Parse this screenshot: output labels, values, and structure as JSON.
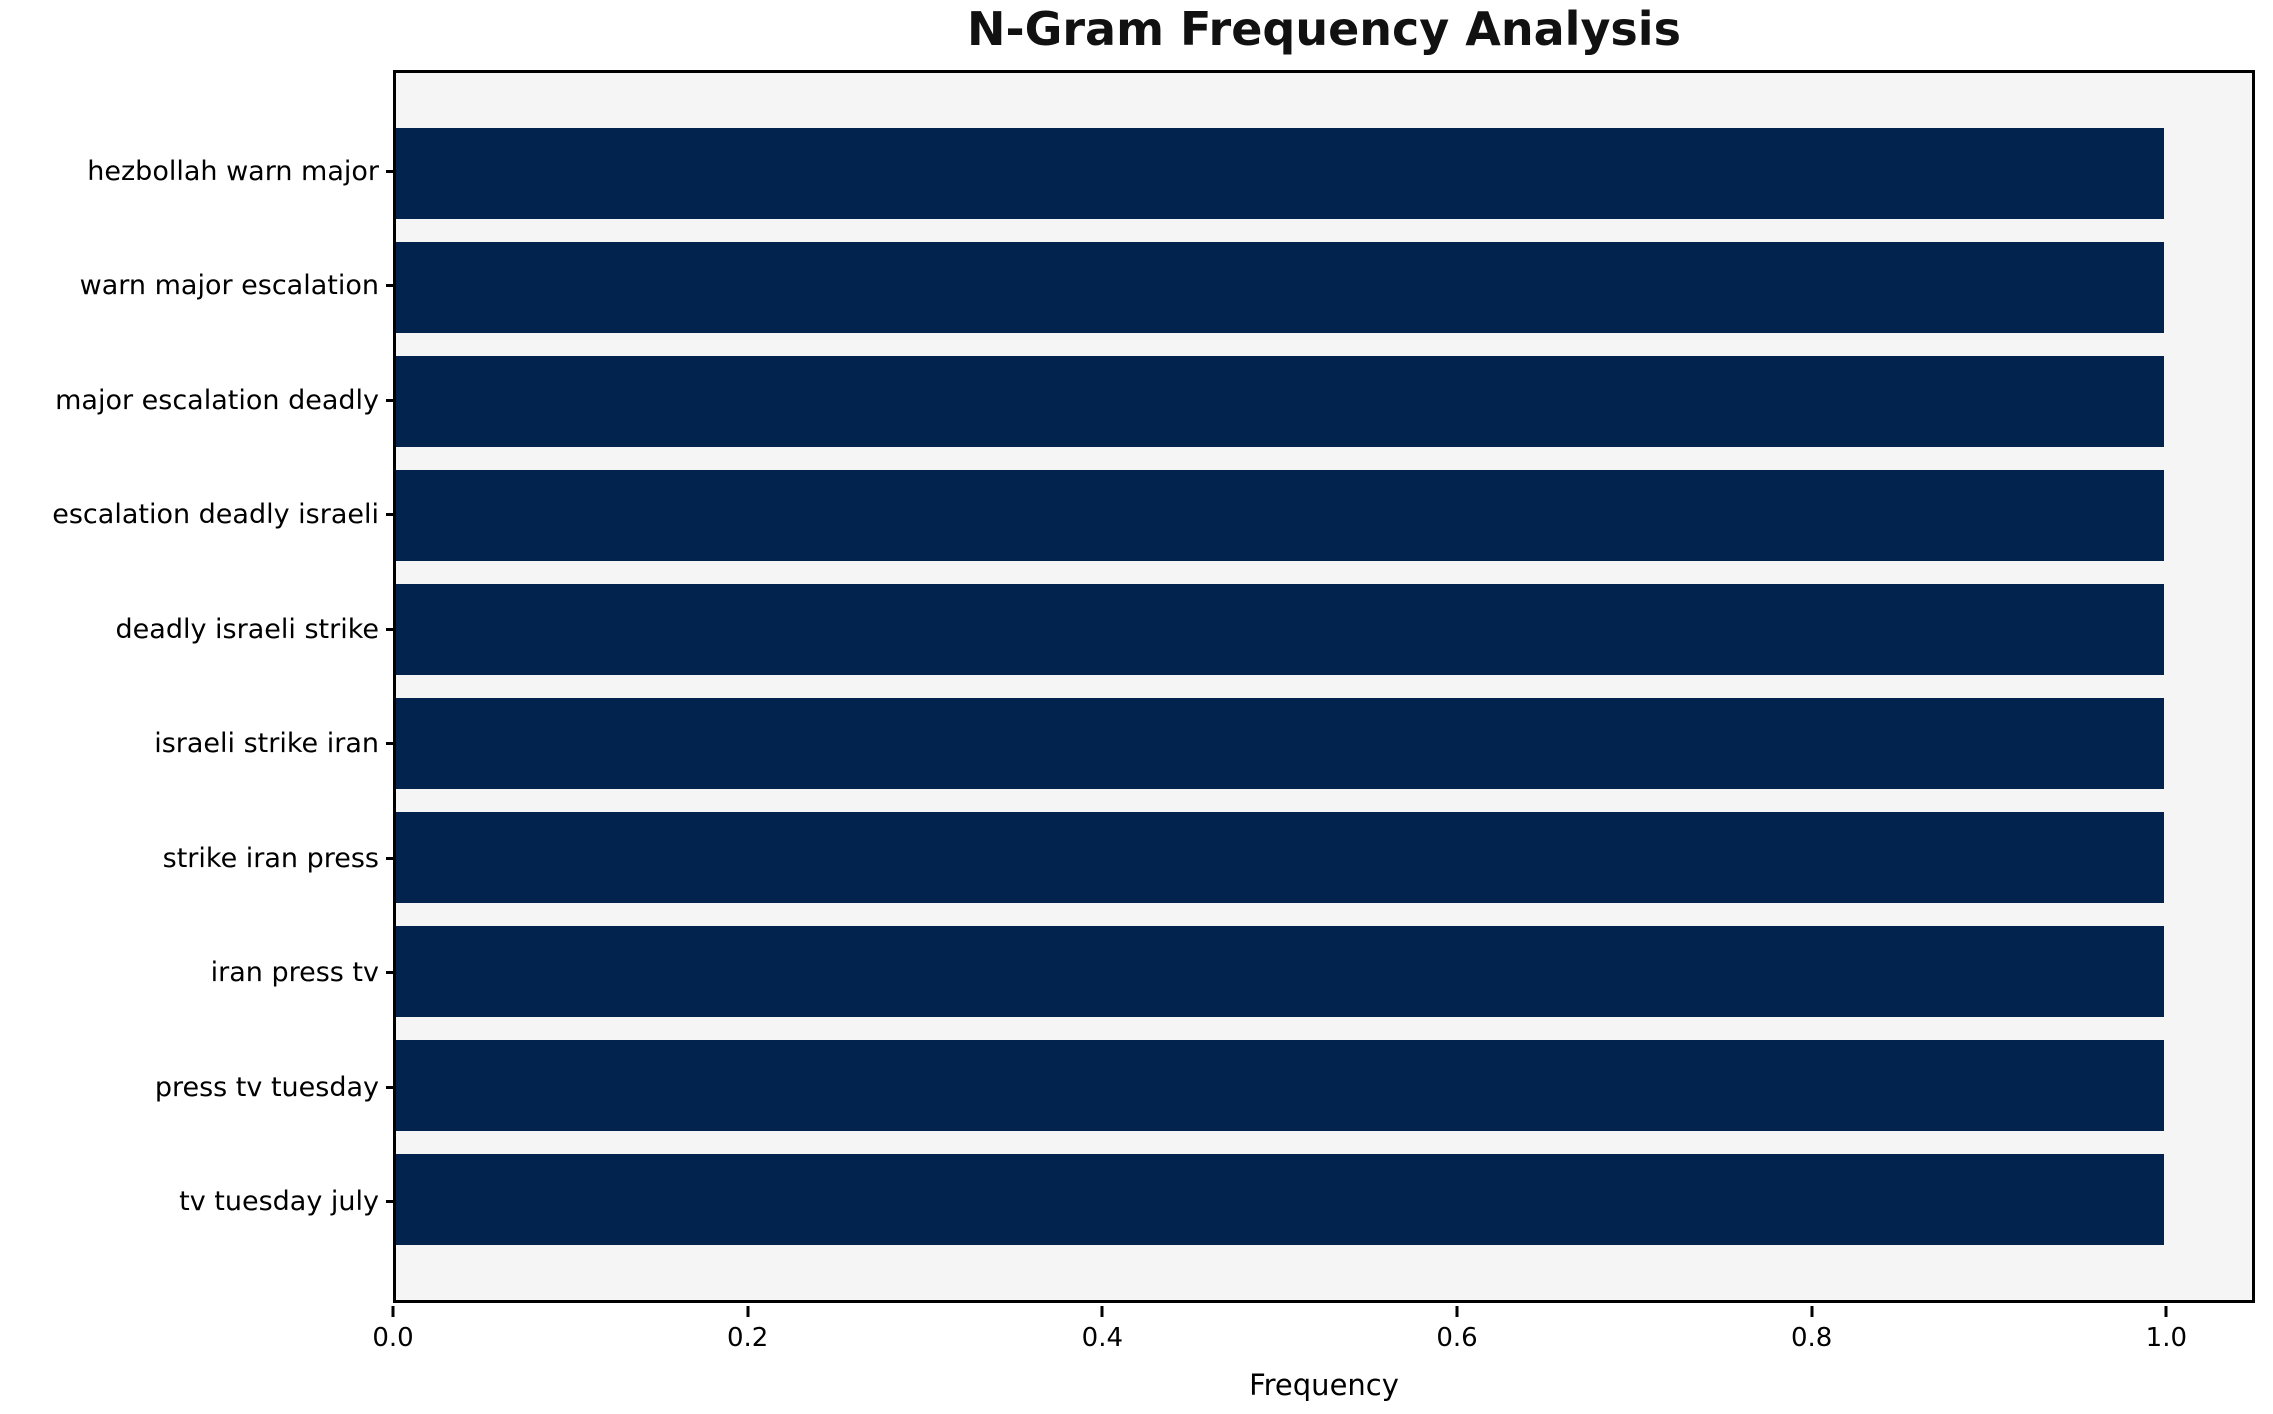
{
  "chart_data": {
    "type": "bar",
    "orientation": "horizontal",
    "title": "N-Gram Frequency Analysis",
    "xlabel": "Frequency",
    "ylabel": "",
    "categories": [
      "hezbollah warn major",
      "warn major escalation",
      "major escalation deadly",
      "escalation deadly israeli",
      "deadly israeli strike",
      "israeli strike iran",
      "strike iran press",
      "iran press tv",
      "press tv tuesday",
      "tv tuesday july"
    ],
    "values": [
      1.0,
      1.0,
      1.0,
      1.0,
      1.0,
      1.0,
      1.0,
      1.0,
      1.0,
      1.0
    ],
    "x_ticks": [
      0.0,
      0.2,
      0.4,
      0.6,
      0.8,
      1.0
    ],
    "x_tick_labels": [
      "0.0",
      "0.2",
      "0.4",
      "0.6",
      "0.8",
      "1.0"
    ],
    "xlim": [
      0,
      1.05
    ],
    "bar_color": "#02234d",
    "plot_background": "#f5f5f5",
    "figure_background": "#ffffff",
    "grid": false,
    "legend": "none"
  }
}
